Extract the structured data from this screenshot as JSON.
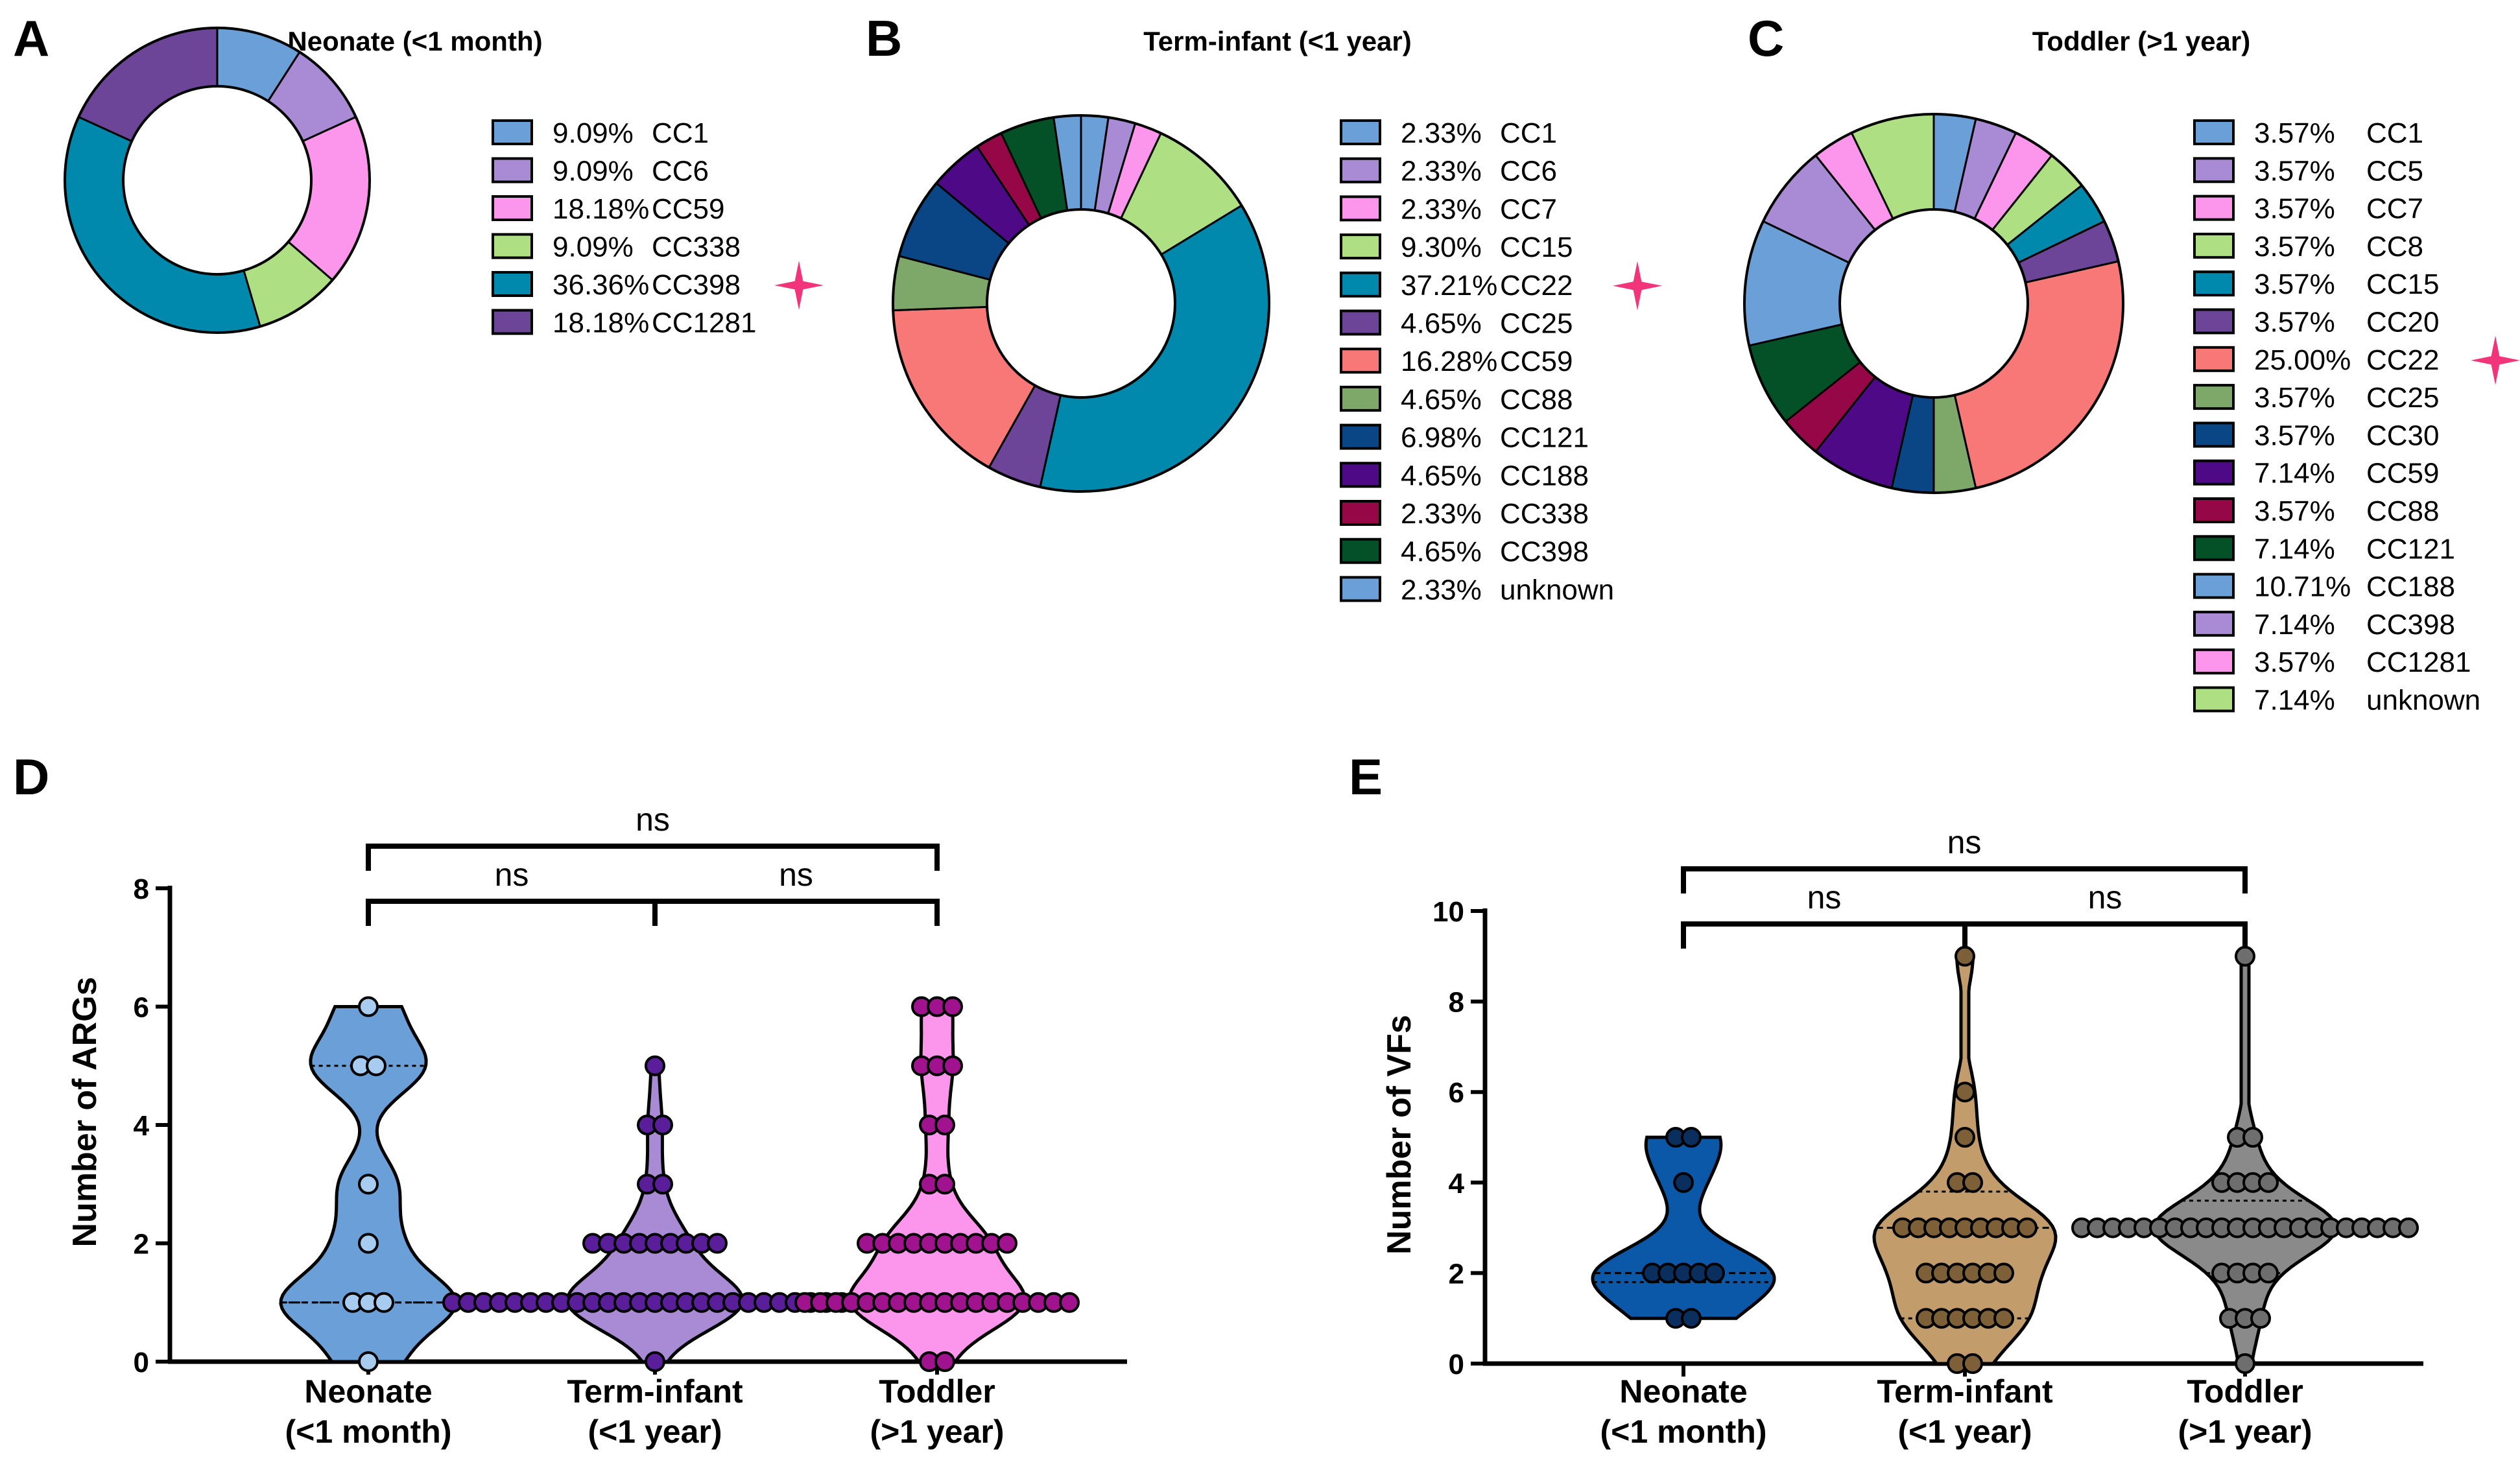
{
  "chart_data": [
    {
      "id": "A",
      "type": "donut",
      "panel_label": "A",
      "title": "Neonate (<1 month)",
      "slices": [
        {
          "pct": 9.09,
          "text": "9.09%",
          "label": "CC1",
          "color": "#6A9FD8"
        },
        {
          "pct": 9.09,
          "text": "9.09%",
          "label": "CC6",
          "color": "#A98AD5"
        },
        {
          "pct": 18.18,
          "text": "18.18%",
          "label": "CC59",
          "color": "#FB96EC"
        },
        {
          "pct": 9.09,
          "text": "9.09%",
          "label": "CC338",
          "color": "#AEDF82"
        },
        {
          "pct": 36.36,
          "text": "36.36%",
          "label": "CC398",
          "color": "#0089AD",
          "star": true
        },
        {
          "pct": 18.18,
          "text": "18.18%",
          "label": "CC1281",
          "color": "#6D4598"
        }
      ],
      "star_color": "#F2357A"
    },
    {
      "id": "B",
      "type": "donut",
      "panel_label": "B",
      "title": "Term-infant (<1 year)",
      "slices": [
        {
          "pct": 2.33,
          "text": "2.33%",
          "label": "CC1",
          "color": "#6A9FD8"
        },
        {
          "pct": 2.33,
          "text": "2.33%",
          "label": "CC6",
          "color": "#A98AD5"
        },
        {
          "pct": 2.33,
          "text": "2.33%",
          "label": "CC7",
          "color": "#FB96EC"
        },
        {
          "pct": 9.3,
          "text": "9.30%",
          "label": "CC15",
          "color": "#AEDF82"
        },
        {
          "pct": 37.21,
          "text": "37.21%",
          "label": "CC22",
          "color": "#0089AD",
          "star": true
        },
        {
          "pct": 4.65,
          "text": "4.65%",
          "label": "CC25",
          "color": "#6D4598"
        },
        {
          "pct": 16.28,
          "text": "16.28%",
          "label": "CC59",
          "color": "#F87878"
        },
        {
          "pct": 4.65,
          "text": "4.65%",
          "label": "CC88",
          "color": "#7EA86A"
        },
        {
          "pct": 6.98,
          "text": "6.98%",
          "label": "CC121",
          "color": "#0A4586"
        },
        {
          "pct": 4.65,
          "text": "4.65%",
          "label": "CC188",
          "color": "#4E0A86"
        },
        {
          "pct": 2.33,
          "text": "2.33%",
          "label": "CC338",
          "color": "#950746"
        },
        {
          "pct": 4.65,
          "text": "4.65%",
          "label": "CC398",
          "color": "#045128"
        },
        {
          "pct": 2.33,
          "text": "2.33%",
          "label": "unknown",
          "color": "#6A9FD8"
        }
      ],
      "star_color": "#F2357A"
    },
    {
      "id": "C",
      "type": "donut",
      "panel_label": "C",
      "title": "Toddler (>1 year)",
      "slices": [
        {
          "pct": 3.57,
          "text": "3.57%",
          "label": "CC1",
          "color": "#6A9FD8"
        },
        {
          "pct": 3.57,
          "text": "3.57%",
          "label": "CC5",
          "color": "#A98AD5"
        },
        {
          "pct": 3.57,
          "text": "3.57%",
          "label": "CC7",
          "color": "#FB96EC"
        },
        {
          "pct": 3.57,
          "text": "3.57%",
          "label": "CC8",
          "color": "#AEDF82"
        },
        {
          "pct": 3.57,
          "text": "3.57%",
          "label": "CC15",
          "color": "#0089AD"
        },
        {
          "pct": 3.57,
          "text": "3.57%",
          "label": "CC20",
          "color": "#6D4598"
        },
        {
          "pct": 25.0,
          "text": "25.00%",
          "label": "CC22",
          "color": "#F87878",
          "star": true
        },
        {
          "pct": 3.57,
          "text": "3.57%",
          "label": "CC25",
          "color": "#7EA86A"
        },
        {
          "pct": 3.57,
          "text": "3.57%",
          "label": "CC30",
          "color": "#0A4586"
        },
        {
          "pct": 7.14,
          "text": "7.14%",
          "label": "CC59",
          "color": "#4E0A86"
        },
        {
          "pct": 3.57,
          "text": "3.57%",
          "label": "CC88",
          "color": "#950746"
        },
        {
          "pct": 7.14,
          "text": "7.14%",
          "label": "CC121",
          "color": "#045128"
        },
        {
          "pct": 10.71,
          "text": "10.71%",
          "label": "CC188",
          "color": "#6A9FD8"
        },
        {
          "pct": 7.14,
          "text": "7.14%",
          "label": "CC398",
          "color": "#A98AD5"
        },
        {
          "pct": 3.57,
          "text": "3.57%",
          "label": "CC1281",
          "color": "#FB96EC"
        },
        {
          "pct": 7.14,
          "text": "7.14%",
          "label": "unknown",
          "color": "#AEDF82"
        }
      ],
      "star_color": "#F2357A"
    },
    {
      "id": "D",
      "type": "violin",
      "panel_label": "D",
      "ylabel": "Number of ARGs",
      "ylim": [
        0,
        8
      ],
      "yticks": [
        0,
        2,
        4,
        6,
        8
      ],
      "groups": [
        {
          "name": "Neonate",
          "sub": "(<1 month)",
          "color": "#6A9FD8",
          "point_color": "#A7CCF0",
          "hollow": true,
          "points": [
            6,
            5,
            5,
            3,
            2,
            1,
            1,
            1,
            0
          ],
          "median": 1,
          "quartiles": [
            1,
            5
          ]
        },
        {
          "name": "Term-infant",
          "sub": "(<1 year)",
          "color": "#A98AD5",
          "point_color": "#5A1E9A",
          "hollow": false,
          "points": [
            5,
            4,
            4,
            3,
            3,
            2,
            2,
            2,
            2,
            2,
            2,
            2,
            2,
            2,
            1,
            1,
            1,
            1,
            1,
            1,
            1,
            1,
            1,
            1,
            1,
            1,
            1,
            1,
            1,
            1,
            1,
            1,
            1,
            1,
            1,
            1,
            1,
            1,
            1,
            1,
            1,
            0
          ],
          "median": 1,
          "quartiles": [
            1,
            2
          ]
        },
        {
          "name": "Toddler",
          "sub": "(>1 year)",
          "color": "#FB96EC",
          "point_color": "#A0128E",
          "hollow": false,
          "points": [
            6,
            6,
            6,
            5,
            5,
            5,
            4,
            4,
            3,
            3,
            2,
            2,
            2,
            2,
            2,
            2,
            2,
            2,
            2,
            2,
            1,
            1,
            1,
            1,
            1,
            1,
            1,
            1,
            1,
            1,
            1,
            1,
            1,
            1,
            1,
            1,
            1,
            1,
            0,
            0
          ],
          "median": 1,
          "quartiles": [
            1,
            2
          ]
        }
      ],
      "comparisons": [
        {
          "from": 0,
          "to": 2,
          "label": "ns",
          "level": 2
        },
        {
          "from": 0,
          "to": 1,
          "label": "ns",
          "level": 1
        },
        {
          "from": 1,
          "to": 2,
          "label": "ns",
          "level": 1
        }
      ]
    },
    {
      "id": "E",
      "type": "violin",
      "panel_label": "E",
      "ylabel": "Number of VFs",
      "ylim": [
        0,
        10
      ],
      "yticks": [
        0,
        2,
        4,
        6,
        8,
        10
      ],
      "groups": [
        {
          "name": "Neonate",
          "sub": "(<1 month)",
          "color": "#0B57A8",
          "point_color": "#0A2F5E",
          "hollow": false,
          "points": [
            5,
            5,
            4,
            2,
            2,
            2,
            2,
            2,
            1,
            1
          ],
          "median": 2,
          "quartiles": [
            1.8,
            5
          ]
        },
        {
          "name": "Term-infant",
          "sub": "(<1 year)",
          "color": "#C29C6B",
          "point_color": "#7D6038",
          "hollow": false,
          "points": [
            9,
            6,
            5,
            4,
            4,
            3,
            3,
            3,
            3,
            3,
            3,
            3,
            3,
            3,
            2,
            2,
            2,
            2,
            2,
            2,
            1,
            1,
            1,
            1,
            1,
            1,
            0,
            0
          ],
          "median": 3,
          "quartiles": [
            1,
            3.8
          ]
        },
        {
          "name": "Toddler",
          "sub": "(>1 year)",
          "color": "#8A8A8A",
          "point_color": "#6E6E6E",
          "hollow": false,
          "points": [
            9,
            5,
            5,
            4,
            4,
            4,
            4,
            3,
            3,
            3,
            3,
            3,
            3,
            3,
            3,
            3,
            3,
            3,
            3,
            3,
            3,
            3,
            3,
            3,
            3,
            3,
            3,
            3,
            3,
            2,
            2,
            2,
            2,
            1,
            1,
            1,
            0
          ],
          "median": 3,
          "quartiles": [
            2,
            3.6
          ]
        }
      ],
      "comparisons": [
        {
          "from": 0,
          "to": 2,
          "label": "ns",
          "level": 2
        },
        {
          "from": 0,
          "to": 1,
          "label": "ns",
          "level": 1
        },
        {
          "from": 1,
          "to": 2,
          "label": "ns",
          "level": 1
        }
      ]
    }
  ]
}
